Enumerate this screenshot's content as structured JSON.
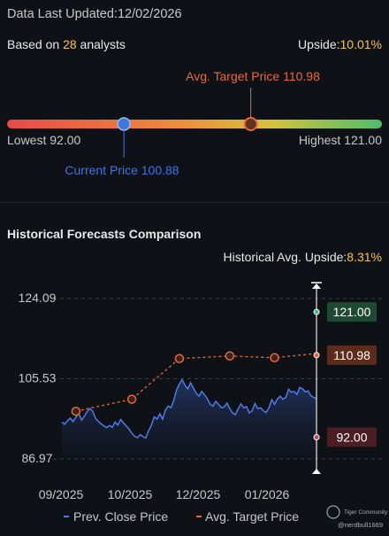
{
  "header": {
    "updated_label": "Data Last Updated:",
    "updated_date": "12/02/2026",
    "analysts_prefix": "Based on ",
    "analysts_count": "28",
    "analysts_suffix": " analysts",
    "upside_label": "Upside:",
    "upside_value": "10.01%"
  },
  "range": {
    "avg_target_label": "Avg. Target Price 110.98",
    "lowest_label": "Lowest 92.00",
    "highest_label": "Highest 121.00",
    "current_label": "Current Price 100.88",
    "low": 92.0,
    "high": 121.0,
    "current": 100.88,
    "target": 110.98,
    "colors": {
      "low": "#e84a4a",
      "mid": "#e8b63a",
      "high": "#4cbf6a",
      "current": "#3b78e0",
      "target": "#e8683a"
    }
  },
  "section": {
    "title": "Historical Forecasts Comparison",
    "hist_upside_label": "Historical Avg. Upside:",
    "hist_upside_value": "8.31%"
  },
  "chart_data": {
    "type": "line",
    "y_ticks": [
      "124.09",
      "105.53",
      "86.97"
    ],
    "ylim": [
      86.97,
      124.09
    ],
    "x_ticks": [
      "09/2025",
      "10/2025",
      "12/2025",
      "01/2026"
    ],
    "series": [
      {
        "name": "Prev. Close Price",
        "color": "#4c7ce8",
        "values": [
          95.5,
          95.0,
          95.8,
          96.4,
          95.6,
          96.6,
          97.5,
          96.0,
          96.8,
          97.9,
          98.6,
          98.0,
          96.4,
          95.7,
          95.1,
          94.6,
          94.2,
          94.7,
          94.3,
          95.5,
          94.8,
          96.1,
          95.3,
          94.6,
          93.9,
          92.9,
          92.2,
          91.9,
          92.6,
          92.1,
          91.8,
          93.5,
          94.8,
          96.7,
          96.2,
          97.4,
          96.2,
          98.3,
          99.2,
          98.8,
          100.6,
          103.0,
          104.3,
          105.3,
          104.0,
          103.2,
          104.6,
          103.4,
          102.2,
          101.5,
          102.6,
          101.8,
          100.9,
          99.6,
          99.2,
          100.3,
          99.6,
          98.8,
          99.0,
          99.9,
          98.6,
          97.6,
          97.2,
          98.6,
          99.7,
          98.8,
          99.1,
          97.6,
          98.1,
          99.8,
          98.6,
          98.8,
          98.1,
          97.7,
          98.8,
          100.7,
          99.6,
          100.8,
          101.5,
          100.8,
          101.2,
          103.1,
          102.4,
          102.6,
          101.9,
          103.5,
          103.2,
          102.5,
          102.7,
          101.6,
          101.2,
          100.9
        ]
      },
      {
        "name": "Avg. Target Price",
        "color": "#e8683a",
        "x_idx": [
          5,
          25,
          42,
          60,
          76,
          91
        ],
        "values": [
          98.0,
          100.8,
          110.2,
          110.8,
          110.4,
          111.4
        ]
      }
    ],
    "markers": [
      {
        "label": "121.00",
        "value": 121.0,
        "bg": "#1e4a33",
        "dot": "#36c37a"
      },
      {
        "label": "110.98",
        "value": 110.98,
        "bg": "#5c2b1a",
        "dot": "#e8683a"
      },
      {
        "label": "92.00",
        "value": 92.0,
        "bg": "#4a1e22",
        "dot": "#c7484f"
      }
    ],
    "legend": [
      "Prev. Close Price",
      "Avg. Target Price"
    ]
  },
  "watermark": {
    "brand": "Tiger Community",
    "user": "@nerdbull1669"
  }
}
